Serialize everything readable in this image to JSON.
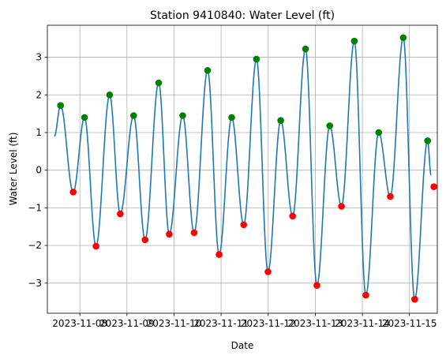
{
  "chart_data": {
    "type": "line",
    "title": "Station 9410840: Water Level (ft)",
    "xlabel": "Date",
    "ylabel": "Water Level (ft)",
    "xlim": [
      "2023-11-07T07:26",
      "2023-11-15T14:12"
    ],
    "ylim": [
      -3.8,
      3.85
    ],
    "grid": true,
    "x_ticks": [
      "2023-11-08",
      "2023-11-09",
      "2023-11-10",
      "2023-11-11",
      "2023-11-12",
      "2023-11-13",
      "2023-11-14",
      "2023-11-15"
    ],
    "y_ticks": [
      -3,
      -2,
      -1,
      0,
      1,
      2,
      3
    ],
    "series": [
      {
        "type": "line",
        "color": "#1f77b4",
        "x": [
          "2023-11-07T11:00",
          "2023-11-07T14:10",
          "2023-11-07T20:36",
          "2023-11-08T02:23",
          "2023-11-08T08:14",
          "2023-11-08T15:11",
          "2023-11-08T20:35",
          "2023-11-09T03:24",
          "2023-11-09T09:14",
          "2023-11-09T16:10",
          "2023-11-09T21:34",
          "2023-11-10T04:25",
          "2023-11-10T10:14",
          "2023-11-10T17:07",
          "2023-11-10T22:59",
          "2023-11-11T05:24",
          "2023-11-11T11:31",
          "2023-11-11T18:01",
          "2023-11-11T23:53",
          "2023-11-12T06:23",
          "2023-11-12T12:27",
          "2023-11-12T19:00",
          "2023-11-13T00:49",
          "2023-11-13T07:22",
          "2023-11-13T13:21",
          "2023-11-13T19:54",
          "2023-11-14T01:46",
          "2023-11-14T08:20",
          "2023-11-14T14:14",
          "2023-11-14T20:50",
          "2023-11-15T02:40",
          "2023-11-15T09:15",
          "2023-11-15T11:00"
        ],
        "y": [
          0.9,
          1.72,
          -0.58,
          1.4,
          -2.02,
          2.0,
          -1.16,
          1.45,
          -1.85,
          2.32,
          -1.7,
          1.45,
          -1.66,
          2.65,
          -2.24,
          1.4,
          -1.45,
          2.95,
          -2.7,
          1.32,
          -1.22,
          3.22,
          -3.06,
          1.18,
          -0.96,
          3.43,
          -3.32,
          1.0,
          -0.7,
          3.52,
          -3.43,
          0.78,
          -0.13
        ]
      }
    ],
    "highs": {
      "color": "#008000",
      "x": [
        "2023-11-07T14:10",
        "2023-11-08T02:23",
        "2023-11-08T15:11",
        "2023-11-09T03:24",
        "2023-11-09T16:10",
        "2023-11-10T04:25",
        "2023-11-10T17:07",
        "2023-11-11T05:24",
        "2023-11-11T18:01",
        "2023-11-12T06:23",
        "2023-11-12T19:00",
        "2023-11-13T07:22",
        "2023-11-13T19:54",
        "2023-11-14T08:20",
        "2023-11-14T20:50",
        "2023-11-15T09:15"
      ],
      "y": [
        1.72,
        1.4,
        2.0,
        1.45,
        2.32,
        1.45,
        2.65,
        1.4,
        2.95,
        1.32,
        3.22,
        1.18,
        3.43,
        1.0,
        3.52,
        0.78
      ]
    },
    "lows": {
      "color": "#ff0000",
      "x": [
        "2023-11-07T20:36",
        "2023-11-08T08:14",
        "2023-11-08T20:35",
        "2023-11-09T09:14",
        "2023-11-09T21:34",
        "2023-11-10T10:14",
        "2023-11-10T22:59",
        "2023-11-11T11:31",
        "2023-11-11T23:53",
        "2023-11-12T12:27",
        "2023-11-13T00:49",
        "2023-11-13T13:21",
        "2023-11-14T01:46",
        "2023-11-14T14:14",
        "2023-11-15T02:40",
        "2023-11-15T12:26"
      ],
      "y": [
        -0.58,
        -2.02,
        -1.16,
        -1.85,
        -1.7,
        -1.66,
        -2.24,
        -1.45,
        -2.7,
        -1.22,
        -3.06,
        -0.96,
        -3.32,
        -0.7,
        -3.43,
        -0.44
      ]
    }
  }
}
